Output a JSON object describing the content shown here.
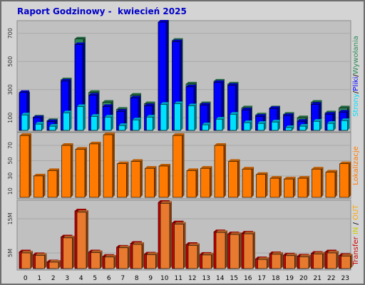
{
  "report": {
    "title": "Raport Godzinowy -  kwiecień 2025"
  },
  "colors": {
    "panel_bg": "#c0c0c0",
    "visits": "#2e8b57",
    "pages": "#0000ff",
    "files": "#00e0ff",
    "sites": "#ff7a00",
    "kbytes": "#e87a30",
    "kbytes_in": "#cc0000",
    "kbytes_out_label": "#ffa500",
    "in_label": "#cccc00"
  },
  "chart_data": [
    {
      "type": "bar",
      "title": "",
      "categories": [
        "0",
        "1",
        "2",
        "3",
        "4",
        "5",
        "6",
        "7",
        "8",
        "9",
        "10",
        "11",
        "12",
        "13",
        "14",
        "15",
        "16",
        "17",
        "18",
        "19",
        "20",
        "21",
        "22",
        "23"
      ],
      "ylim": [
        0,
        780
      ],
      "yticks": [
        "100",
        "300",
        "500",
        "700"
      ],
      "ylabel_parts": [
        "Strony",
        "/",
        "Pliki",
        "/",
        "Wywołania"
      ],
      "series": [
        {
          "name": "Wywołania",
          "values": [
            270,
            105,
            80,
            370,
            660,
            280,
            210,
            160,
            260,
            200,
            780,
            650,
            340,
            200,
            360,
            340,
            170,
            120,
            170,
            125,
            100,
            210,
            135,
            170
          ]
        },
        {
          "name": "Pliki",
          "values": [
            280,
            100,
            72,
            360,
            620,
            260,
            180,
            145,
            240,
            185,
            780,
            640,
            320,
            190,
            350,
            330,
            155,
            110,
            165,
            115,
            75,
            195,
            125,
            140
          ]
        },
        {
          "name": "Strony",
          "values": [
            120,
            55,
            40,
            135,
            180,
            110,
            105,
            45,
            85,
            105,
            195,
            200,
            185,
            50,
            90,
            125,
            65,
            60,
            70,
            30,
            40,
            75,
            60,
            80
          ]
        }
      ]
    },
    {
      "type": "bar",
      "title": "",
      "categories": [
        "0",
        "1",
        "2",
        "3",
        "4",
        "5",
        "6",
        "7",
        "8",
        "9",
        "10",
        "11",
        "12",
        "13",
        "14",
        "15",
        "16",
        "17",
        "18",
        "19",
        "20",
        "21",
        "22",
        "23"
      ],
      "ylim": [
        0,
        85
      ],
      "yticks": [
        "10",
        "30",
        "50",
        "70"
      ],
      "ylabel": "Lokalizacje",
      "series": [
        {
          "name": "Lokalizacje",
          "values": [
            83,
            30,
            37,
            70,
            65,
            72,
            84,
            46,
            49,
            40,
            43,
            83,
            37,
            40,
            70,
            49,
            39,
            32,
            27,
            26,
            27,
            39,
            35,
            46
          ]
        }
      ]
    },
    {
      "type": "bar",
      "title": "",
      "categories": [
        "0",
        "1",
        "2",
        "3",
        "4",
        "5",
        "6",
        "7",
        "8",
        "9",
        "10",
        "11",
        "12",
        "13",
        "14",
        "15",
        "16",
        "17",
        "18",
        "19",
        "20",
        "21",
        "22",
        "23"
      ],
      "ylim": [
        0,
        20
      ],
      "yticks": [
        "5M",
        "15M"
      ],
      "ylabel_parts": [
        "Transfer",
        "IN",
        "/",
        "OUT"
      ],
      "series": [
        {
          "name": "IN",
          "values": [
            5.3,
            4.5,
            2.4,
            9.7,
            17.3,
            5.3,
            4.0,
            6.7,
            7.8,
            4.7,
            19.8,
            13.8,
            7.5,
            4.6,
            11.2,
            10.6,
            10.8,
            3.3,
            4.8,
            4.4,
            4.1,
            4.9,
            5.3,
            4.3
          ]
        },
        {
          "name": "OUT",
          "values": [
            5.0,
            4.3,
            2.3,
            9.4,
            16.9,
            5.1,
            3.8,
            6.5,
            7.5,
            4.5,
            19.5,
            13.4,
            7.2,
            4.4,
            11.0,
            10.4,
            10.6,
            3.1,
            4.6,
            4.2,
            3.9,
            4.7,
            5.0,
            4.1
          ]
        }
      ]
    }
  ]
}
